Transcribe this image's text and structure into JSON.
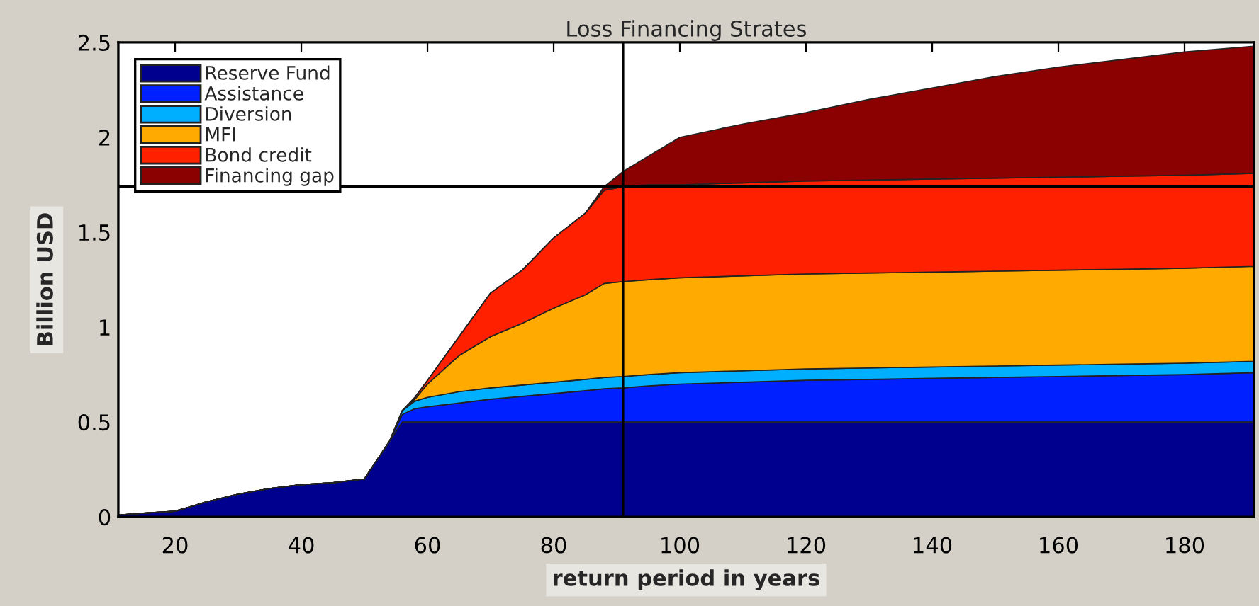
{
  "chart_data": {
    "type": "area",
    "stacked": true,
    "title": "Loss Financing Strates",
    "xlabel": "return period in years",
    "ylabel": "Billion USD",
    "x": [
      11,
      15,
      20,
      25,
      30,
      35,
      40,
      45,
      50,
      52,
      54,
      56,
      58,
      60,
      65,
      70,
      75,
      80,
      85,
      88,
      91,
      95,
      100,
      110,
      120,
      130,
      140,
      150,
      160,
      170,
      180,
      191
    ],
    "series": [
      {
        "name": "Reserve Fund",
        "color": "#00008f",
        "values": [
          0.01,
          0.02,
          0.03,
          0.08,
          0.12,
          0.15,
          0.17,
          0.18,
          0.2,
          0.3,
          0.4,
          0.5,
          0.5,
          0.5,
          0.5,
          0.5,
          0.5,
          0.5,
          0.5,
          0.5,
          0.5,
          0.5,
          0.5,
          0.5,
          0.5,
          0.5,
          0.5,
          0.5,
          0.5,
          0.5,
          0.5,
          0.5
        ]
      },
      {
        "name": "Assistance",
        "color": "#0020ff",
        "values": [
          0,
          0,
          0,
          0,
          0,
          0,
          0,
          0,
          0,
          0,
          0,
          0.04,
          0.07,
          0.08,
          0.1,
          0.12,
          0.135,
          0.15,
          0.165,
          0.175,
          0.18,
          0.19,
          0.2,
          0.21,
          0.22,
          0.225,
          0.23,
          0.235,
          0.24,
          0.245,
          0.25,
          0.26
        ]
      },
      {
        "name": "Diversion",
        "color": "#00b0ff",
        "values": [
          0,
          0,
          0,
          0,
          0,
          0,
          0,
          0,
          0,
          0,
          0,
          0.02,
          0.04,
          0.05,
          0.06,
          0.06,
          0.06,
          0.06,
          0.06,
          0.06,
          0.06,
          0.06,
          0.06,
          0.06,
          0.06,
          0.06,
          0.06,
          0.06,
          0.06,
          0.06,
          0.06,
          0.06
        ]
      },
      {
        "name": "MFI",
        "color": "#ffaa00",
        "values": [
          0,
          0,
          0,
          0,
          0,
          0,
          0,
          0,
          0,
          0,
          0,
          0,
          0.01,
          0.07,
          0.19,
          0.27,
          0.325,
          0.39,
          0.445,
          0.495,
          0.5,
          0.5,
          0.5,
          0.5,
          0.5,
          0.5,
          0.5,
          0.5,
          0.5,
          0.5,
          0.5,
          0.5
        ]
      },
      {
        "name": "Bond credit",
        "color": "#ff2000",
        "values": [
          0,
          0,
          0,
          0,
          0,
          0,
          0,
          0,
          0,
          0,
          0,
          0,
          0.01,
          0.02,
          0.1,
          0.23,
          0.28,
          0.37,
          0.43,
          0.49,
          0.5,
          0.5,
          0.49,
          0.49,
          0.49,
          0.49,
          0.49,
          0.49,
          0.49,
          0.49,
          0.49,
          0.49
        ]
      },
      {
        "name": "Financing gap",
        "color": "#8b0000",
        "values": [
          0,
          0,
          0,
          0,
          0,
          0,
          0,
          0,
          0,
          0,
          0,
          0,
          0,
          0,
          0,
          0,
          0,
          0,
          0,
          0.02,
          0.08,
          0.15,
          0.25,
          0.31,
          0.36,
          0.425,
          0.48,
          0.535,
          0.58,
          0.615,
          0.65,
          0.67
        ]
      }
    ],
    "xlim": [
      11,
      191
    ],
    "ylim": [
      0,
      2.5
    ],
    "xticks": [
      20,
      40,
      60,
      80,
      100,
      120,
      140,
      160,
      180
    ],
    "yticks": [
      0,
      0.5,
      1,
      1.5,
      2,
      2.5
    ],
    "ref_lines": [
      {
        "axis": "y",
        "value": 1.74,
        "color": "#000000"
      },
      {
        "axis": "x",
        "value": 91,
        "color": "#000000"
      }
    ],
    "grid": false,
    "legend": "top left"
  }
}
